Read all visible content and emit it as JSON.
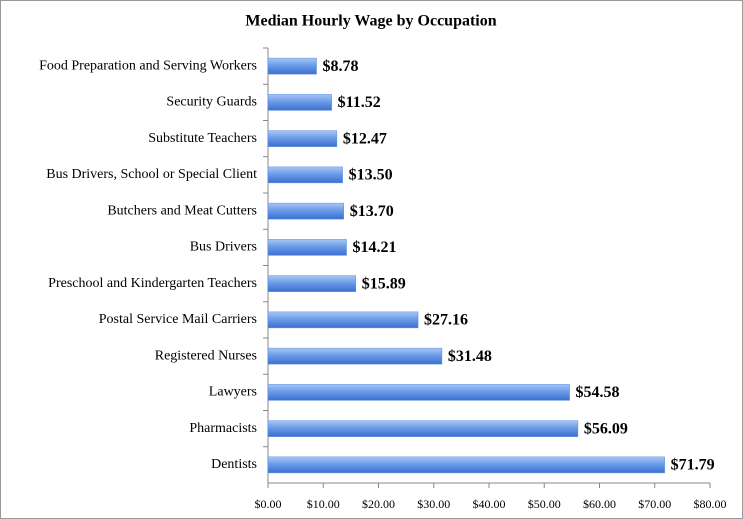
{
  "chart_data": {
    "type": "bar",
    "orientation": "horizontal",
    "title": "Median Hourly Wage by Occupation",
    "categories": [
      "Food Preparation and Serving Workers",
      "Security Guards",
      "Substitute Teachers",
      "Bus Drivers, School or Special Client",
      "Butchers and Meat Cutters",
      "Bus Drivers",
      "Preschool and Kindergarten Teachers",
      "Postal Service Mail Carriers",
      "Registered Nurses",
      "Lawyers",
      "Pharmacists",
      "Dentists"
    ],
    "values": [
      8.78,
      11.52,
      12.47,
      13.5,
      13.7,
      14.21,
      15.89,
      27.16,
      31.48,
      54.58,
      56.09,
      71.79
    ],
    "value_labels": [
      "$8.78",
      "$11.52",
      "$12.47",
      "$13.50",
      "$13.70",
      "$14.21",
      "$15.89",
      "$27.16",
      "$31.48",
      "$54.58",
      "$56.09",
      "$71.79"
    ],
    "color": "#5b8fe0",
    "xlim": [
      0,
      80
    ],
    "xticks": [
      {
        "value": 0,
        "label": "$0.00"
      },
      {
        "value": 10,
        "label": "$10.00"
      },
      {
        "value": 20,
        "label": "$20.00"
      },
      {
        "value": 30,
        "label": "$30.00"
      },
      {
        "value": 40,
        "label": "$40.00"
      },
      {
        "value": 50,
        "label": "$50.00"
      },
      {
        "value": 60,
        "label": "$60.00"
      },
      {
        "value": 70,
        "label": "$70.00"
      },
      {
        "value": 80,
        "label": "$80.00"
      }
    ],
    "grid": false
  }
}
